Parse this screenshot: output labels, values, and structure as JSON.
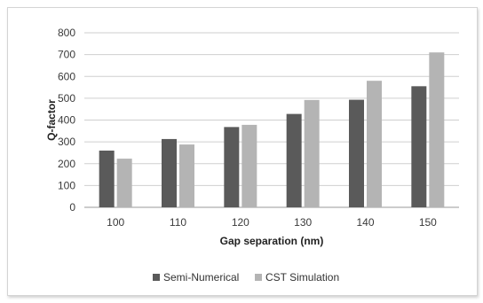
{
  "chart_data": {
    "type": "bar",
    "title": "",
    "xlabel": "Gap separation (nm)",
    "ylabel": "Q-factor",
    "categories": [
      "100",
      "110",
      "120",
      "130",
      "140",
      "150"
    ],
    "series": [
      {
        "name": "Semi-Numerical",
        "color": "#5a5a5a",
        "values": [
          260,
          313,
          368,
          428,
          493,
          555
        ]
      },
      {
        "name": "CST Simulation",
        "color": "#b4b4b4",
        "values": [
          223,
          288,
          378,
          492,
          580,
          710
        ]
      }
    ],
    "ylim": [
      0,
      800
    ],
    "yticks": [
      0,
      100,
      200,
      300,
      400,
      500,
      600,
      700,
      800
    ],
    "grid": true,
    "legend_position": "bottom"
  }
}
